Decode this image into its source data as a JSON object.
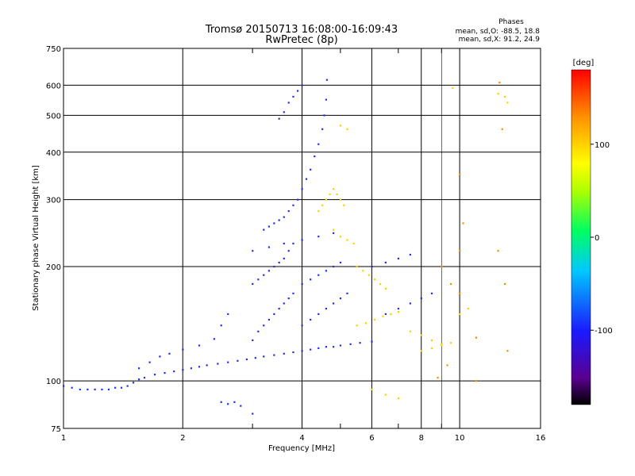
{
  "chart_data": {
    "type": "scatter",
    "title": "Tromsø 20150713 16:08:00-16:09:43",
    "subtitle": "RwPretec (8p)",
    "xlabel": "Frequency [MHz]",
    "ylabel": "Stationary phase Virtual Height [km]",
    "x_scale": "log",
    "y_scale": "log",
    "xlim": [
      1,
      16
    ],
    "ylim": [
      75,
      750
    ],
    "x_ticks": [
      1,
      2,
      4,
      6,
      8,
      10,
      16
    ],
    "x_tick_labels": [
      "1",
      "2",
      "4",
      "6",
      "8",
      "10",
      "16"
    ],
    "y_ticks": [
      75,
      100,
      200,
      300,
      400,
      500,
      600,
      750
    ],
    "y_tick_labels": [
      "75",
      "100",
      "200",
      "300",
      "400",
      "500",
      "600",
      "750"
    ],
    "grid": true,
    "phases_box": {
      "title": "Phases",
      "line_o": "mean, sd,O: -88.5, 18.8",
      "line_x": "mean, sd,X:  91.2, 24.9"
    },
    "colorbar": {
      "label": "[deg]",
      "range": [
        -180,
        180
      ],
      "tick_labels": [
        "100",
        "0",
        "-100"
      ],
      "tick_values": [
        100,
        0,
        -100
      ],
      "colors": [
        "#000000",
        "#5a0090",
        "#1a1aff",
        "#00c8ff",
        "#00ff60",
        "#b0ff00",
        "#ffff00",
        "#ff9000",
        "#ff0000"
      ]
    },
    "series": [
      {
        "note": "O-mode trace (phase ~ -90 deg, blue)",
        "points": [
          [
            1.0,
            97
          ],
          [
            1.05,
            96
          ],
          [
            1.1,
            95
          ],
          [
            1.15,
            95
          ],
          [
            1.2,
            95
          ],
          [
            1.25,
            95
          ],
          [
            1.3,
            95
          ],
          [
            1.35,
            96
          ],
          [
            1.4,
            96
          ],
          [
            1.45,
            97
          ],
          [
            1.5,
            99
          ],
          [
            1.55,
            101
          ],
          [
            1.6,
            102
          ],
          [
            1.7,
            104
          ],
          [
            1.8,
            105
          ],
          [
            1.9,
            106
          ],
          [
            2.0,
            107
          ],
          [
            2.1,
            108
          ],
          [
            2.2,
            109
          ],
          [
            2.3,
            110
          ],
          [
            2.45,
            111
          ],
          [
            2.6,
            112
          ],
          [
            2.75,
            113
          ],
          [
            2.9,
            114
          ],
          [
            3.05,
            115
          ],
          [
            3.2,
            116
          ],
          [
            3.4,
            117
          ],
          [
            3.6,
            118
          ],
          [
            3.8,
            119
          ],
          [
            4.0,
            120
          ],
          [
            4.2,
            121
          ],
          [
            4.4,
            122
          ],
          [
            4.6,
            123
          ],
          [
            4.8,
            123
          ],
          [
            5.0,
            124
          ],
          [
            5.3,
            125
          ],
          [
            5.6,
            126
          ],
          [
            6.0,
            127
          ],
          [
            1.55,
            108
          ],
          [
            1.65,
            112
          ],
          [
            1.75,
            116
          ],
          [
            1.85,
            118
          ],
          [
            2.0,
            121
          ],
          [
            2.2,
            124
          ],
          [
            2.4,
            129
          ],
          [
            2.5,
            140
          ],
          [
            2.6,
            150
          ],
          [
            3.0,
            128
          ],
          [
            3.1,
            135
          ],
          [
            3.2,
            140
          ],
          [
            3.3,
            145
          ],
          [
            3.4,
            150
          ],
          [
            3.5,
            155
          ],
          [
            3.6,
            160
          ],
          [
            3.7,
            165
          ],
          [
            3.8,
            170
          ],
          [
            3.0,
            180
          ],
          [
            3.1,
            185
          ],
          [
            3.2,
            190
          ],
          [
            3.3,
            195
          ],
          [
            3.4,
            200
          ],
          [
            3.5,
            205
          ],
          [
            3.6,
            210
          ],
          [
            3.7,
            220
          ],
          [
            3.8,
            230
          ],
          [
            3.2,
            250
          ],
          [
            3.3,
            255
          ],
          [
            3.4,
            260
          ],
          [
            3.5,
            265
          ],
          [
            3.6,
            270
          ],
          [
            3.7,
            280
          ],
          [
            3.8,
            290
          ],
          [
            3.9,
            300
          ],
          [
            4.0,
            320
          ],
          [
            4.1,
            340
          ],
          [
            4.2,
            360
          ],
          [
            4.3,
            390
          ],
          [
            4.4,
            420
          ],
          [
            4.5,
            460
          ],
          [
            4.55,
            500
          ],
          [
            4.6,
            550
          ],
          [
            4.62,
            620
          ],
          [
            3.5,
            490
          ],
          [
            3.6,
            510
          ],
          [
            3.7,
            540
          ],
          [
            3.8,
            560
          ],
          [
            3.9,
            580
          ],
          [
            4.0,
            600
          ],
          [
            4.0,
            140
          ],
          [
            4.2,
            145
          ],
          [
            4.4,
            150
          ],
          [
            4.6,
            155
          ],
          [
            4.8,
            160
          ],
          [
            5.0,
            165
          ],
          [
            5.2,
            170
          ],
          [
            4.0,
            180
          ],
          [
            4.2,
            185
          ],
          [
            4.4,
            190
          ],
          [
            4.6,
            195
          ],
          [
            4.8,
            200
          ],
          [
            5.0,
            205
          ],
          [
            3.0,
            220
          ],
          [
            3.3,
            225
          ],
          [
            3.6,
            230
          ],
          [
            4.0,
            235
          ],
          [
            4.4,
            240
          ],
          [
            4.8,
            245
          ],
          [
            6.5,
            150
          ],
          [
            7.0,
            155
          ],
          [
            7.5,
            160
          ],
          [
            8.0,
            165
          ],
          [
            8.5,
            170
          ],
          [
            6.0,
            200
          ],
          [
            6.5,
            205
          ],
          [
            7.0,
            210
          ],
          [
            7.5,
            215
          ],
          [
            2.5,
            88
          ],
          [
            2.6,
            87
          ],
          [
            2.7,
            88
          ],
          [
            2.8,
            86
          ],
          [
            3.0,
            82
          ]
        ]
      },
      {
        "note": "X-mode trace (phase ~ +90 deg, yellow/orange)",
        "points": [
          [
            4.4,
            280
          ],
          [
            4.5,
            290
          ],
          [
            4.6,
            300
          ],
          [
            4.7,
            310
          ],
          [
            4.8,
            320
          ],
          [
            4.9,
            310
          ],
          [
            5.0,
            300
          ],
          [
            5.1,
            290
          ],
          [
            4.8,
            250
          ],
          [
            5.0,
            240
          ],
          [
            5.2,
            235
          ],
          [
            5.4,
            230
          ],
          [
            5.5,
            200
          ],
          [
            5.7,
            195
          ],
          [
            5.9,
            190
          ],
          [
            6.1,
            185
          ],
          [
            6.3,
            180
          ],
          [
            6.5,
            175
          ],
          [
            5.5,
            140
          ],
          [
            5.8,
            142
          ],
          [
            6.1,
            145
          ],
          [
            6.4,
            148
          ],
          [
            6.7,
            150
          ],
          [
            7.0,
            152
          ],
          [
            7.5,
            135
          ],
          [
            8.0,
            132
          ],
          [
            8.5,
            128
          ],
          [
            9.0,
            125
          ],
          [
            8.0,
            120
          ],
          [
            8.5,
            122
          ],
          [
            9.0,
            124
          ],
          [
            9.5,
            126
          ],
          [
            10.0,
            150
          ],
          [
            10.5,
            155
          ],
          [
            12.5,
            570
          ],
          [
            13.0,
            560
          ],
          [
            13.2,
            540
          ],
          [
            9.6,
            590
          ],
          [
            5.0,
            470
          ],
          [
            5.2,
            460
          ],
          [
            6.0,
            95
          ],
          [
            6.5,
            92
          ],
          [
            7.0,
            90
          ]
        ]
      },
      {
        "note": "scattered weak echoes",
        "points": [
          [
            10.0,
            350
          ],
          [
            10.2,
            260
          ],
          [
            10.0,
            220
          ],
          [
            12.5,
            220
          ],
          [
            13.0,
            180
          ],
          [
            13.2,
            120
          ],
          [
            12.8,
            460
          ],
          [
            12.6,
            610
          ],
          [
            9.0,
            200
          ],
          [
            9.5,
            180
          ],
          [
            10.0,
            170
          ],
          [
            11.0,
            130
          ],
          [
            11.0,
            100
          ],
          [
            8.8,
            102
          ],
          [
            9.3,
            110
          ]
        ]
      }
    ]
  }
}
